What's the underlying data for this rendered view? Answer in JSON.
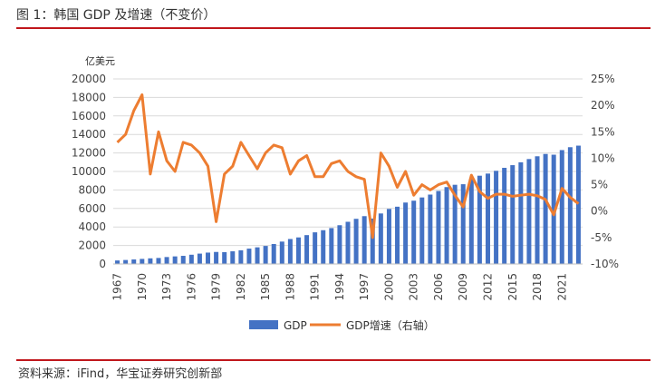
{
  "figure": {
    "title": "图 1：韩国 GDP 及增速（不变价）",
    "source": "资料来源：iFind，华宝证券研究创新部"
  },
  "chart_data": {
    "type": "bar+line",
    "title": "图 1：韩国 GDP 及增速（不变价）",
    "y_unit_label": "亿美元",
    "ylim": [
      0,
      20000
    ],
    "y_ticks": [
      0,
      2000,
      4000,
      6000,
      8000,
      10000,
      12000,
      14000,
      16000,
      18000,
      20000
    ],
    "y2lim": [
      -10,
      25
    ],
    "y2_ticks": [
      "-10%",
      "-5%",
      "0%",
      "5%",
      "10%",
      "15%",
      "20%",
      "25%"
    ],
    "x_tick_labels": [
      "1967",
      "1970",
      "1973",
      "1976",
      "1979",
      "1982",
      "1985",
      "1988",
      "1991",
      "1994",
      "1997",
      "2000",
      "2003",
      "2006",
      "2009",
      "2012",
      "2015",
      "2018",
      "2021"
    ],
    "categories": [
      1967,
      1968,
      1969,
      1970,
      1971,
      1972,
      1973,
      1974,
      1975,
      1976,
      1977,
      1978,
      1979,
      1980,
      1981,
      1982,
      1983,
      1984,
      1985,
      1986,
      1987,
      1988,
      1989,
      1990,
      1991,
      1992,
      1993,
      1994,
      1995,
      1996,
      1997,
      1998,
      1999,
      2000,
      2001,
      2002,
      2003,
      2004,
      2005,
      2006,
      2007,
      2008,
      2009,
      2010,
      2011,
      2012,
      2013,
      2014,
      2015,
      2016,
      2017,
      2018,
      2019,
      2020,
      2021,
      2022,
      2023
    ],
    "series": [
      {
        "name": "GDP",
        "axis": "left",
        "color": "#4472c4",
        "values": [
          380,
          430,
          490,
          550,
          610,
          650,
          750,
          820,
          880,
          1000,
          1120,
          1230,
          1300,
          1280,
          1370,
          1480,
          1660,
          1800,
          1950,
          2160,
          2420,
          2700,
          2870,
          3120,
          3420,
          3650,
          3880,
          4190,
          4560,
          4880,
          5170,
          4910,
          5460,
          5950,
          6190,
          6640,
          6840,
          7190,
          7500,
          7890,
          8310,
          8560,
          8620,
          9220,
          9540,
          9770,
          10070,
          10390,
          10680,
          10990,
          11340,
          11640,
          11890,
          11810,
          12310,
          12620,
          12790
        ]
      },
      {
        "name": "GDP增速（右轴）",
        "axis": "right",
        "color": "#ed7d31",
        "values": [
          13.0,
          14.5,
          19.0,
          22.0,
          7.0,
          15.0,
          9.5,
          7.5,
          13.0,
          12.5,
          11.0,
          8.5,
          -2.0,
          7.0,
          8.5,
          13.0,
          10.5,
          8.0,
          11.0,
          12.5,
          12.0,
          7.0,
          9.5,
          10.5,
          6.5,
          6.5,
          9.0,
          9.5,
          7.5,
          6.5,
          6.0,
          -5.0,
          11.0,
          8.5,
          4.5,
          7.5,
          3.0,
          5.0,
          4.0,
          5.0,
          5.5,
          3.0,
          0.8,
          6.8,
          3.7,
          2.4,
          3.2,
          3.2,
          2.8,
          3.0,
          3.2,
          2.9,
          2.2,
          -0.7,
          4.3,
          2.6,
          1.4
        ]
      }
    ],
    "legend_position": "bottom-center"
  }
}
